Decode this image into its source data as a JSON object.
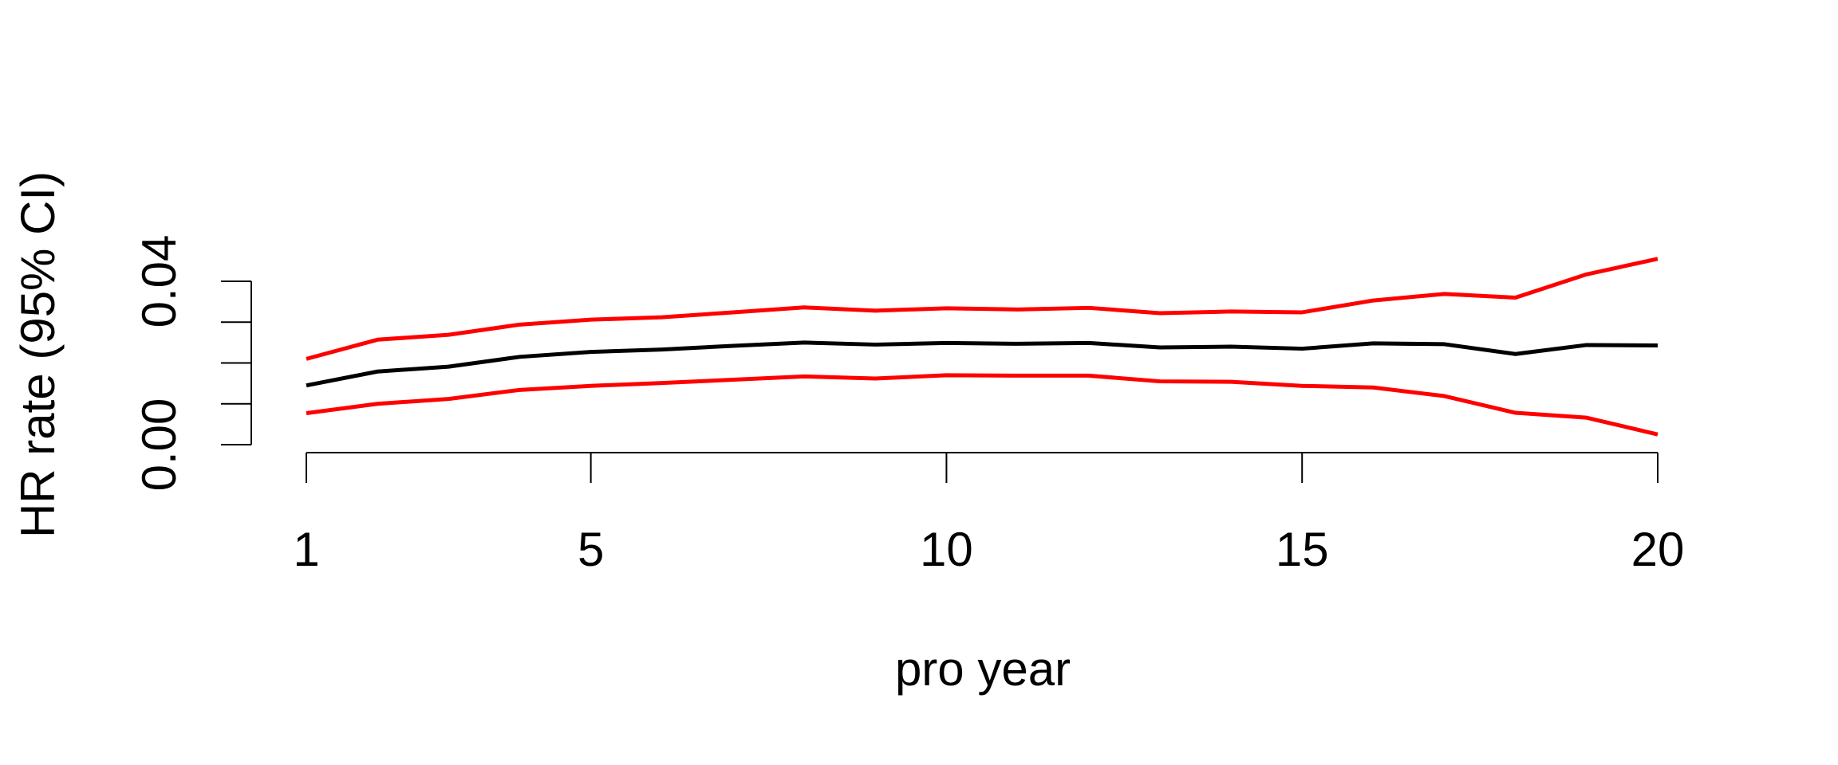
{
  "chart_data": {
    "type": "line",
    "title": "",
    "xlabel": "pro year",
    "ylabel": "HR rate (95% CI)",
    "xlim": [
      1,
      20
    ],
    "ylim": [
      0.0,
      0.04
    ],
    "x_ticks": [
      1,
      5,
      10,
      15,
      20
    ],
    "x_tick_labels": [
      "1",
      "5",
      "10",
      "15",
      "20"
    ],
    "y_ticks": [
      0.0,
      0.01,
      0.02,
      0.03,
      0.04
    ],
    "y_tick_labels": [
      "0.00",
      "",
      "",
      "",
      "0.04"
    ],
    "grid": false,
    "x": [
      1,
      2,
      3,
      4,
      5,
      6,
      7,
      8,
      9,
      10,
      11,
      12,
      13,
      14,
      15,
      16,
      17,
      18,
      19,
      20
    ],
    "series": [
      {
        "color": "#ff0000",
        "values": [
          0.021,
          0.0257,
          0.0269,
          0.0294,
          0.0306,
          0.0312,
          0.0324,
          0.0336,
          0.0328,
          0.0334,
          0.0331,
          0.0335,
          0.0322,
          0.0326,
          0.0324,
          0.0353,
          0.0369,
          0.036,
          0.0417,
          0.0455
        ]
      },
      {
        "color": "#000000",
        "values": [
          0.0145,
          0.0179,
          0.0191,
          0.0215,
          0.0227,
          0.0233,
          0.0242,
          0.025,
          0.0245,
          0.0249,
          0.0247,
          0.0249,
          0.0238,
          0.024,
          0.0235,
          0.0248,
          0.0246,
          0.0222,
          0.0244,
          0.0243
        ]
      },
      {
        "color": "#ff0000",
        "values": [
          0.0077,
          0.01,
          0.0112,
          0.0134,
          0.0144,
          0.0151,
          0.0159,
          0.0167,
          0.0162,
          0.017,
          0.0169,
          0.0169,
          0.0155,
          0.0154,
          0.0144,
          0.014,
          0.0119,
          0.0078,
          0.0066,
          0.0025
        ]
      }
    ]
  }
}
